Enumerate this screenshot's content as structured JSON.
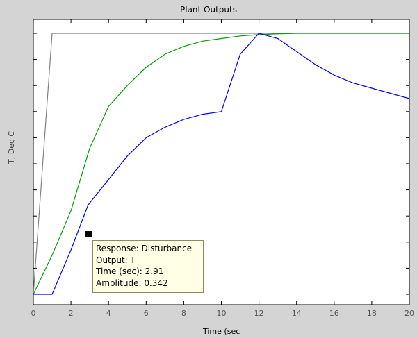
{
  "chart_data": {
    "type": "line",
    "title": "Plant Outputs",
    "xlabel": "Time (sec",
    "ylabel": "T, Deg C",
    "xlim": [
      0,
      20
    ],
    "ylim": [
      0,
      1.05
    ],
    "x_ticks": [
      "0",
      "2",
      "4",
      "6",
      "8",
      "10",
      "12",
      "14",
      "16",
      "18",
      "20"
    ],
    "grid": false,
    "series": [
      {
        "color": "#808080",
        "x": [
          0,
          1,
          20
        ],
        "y": [
          0,
          1,
          1
        ]
      },
      {
        "color": "#00a000",
        "x": [
          0,
          1,
          2,
          3,
          4,
          5,
          6,
          7,
          8,
          9,
          10,
          11,
          12,
          13,
          14,
          16,
          18,
          20
        ],
        "y": [
          0,
          0.15,
          0.32,
          0.56,
          0.72,
          0.8,
          0.87,
          0.92,
          0.95,
          0.97,
          0.98,
          0.99,
          0.995,
          0.998,
          1.0,
          1.0,
          1.0,
          1.0
        ]
      },
      {
        "color": "#0000ff",
        "x": [
          0,
          1,
          2,
          2.91,
          4,
          5,
          6,
          7,
          8,
          9,
          10,
          11,
          12,
          13,
          14,
          15,
          16,
          17,
          18,
          19,
          20
        ],
        "y": [
          0,
          0,
          0.17,
          0.342,
          0.44,
          0.53,
          0.6,
          0.64,
          0.67,
          0.69,
          0.7,
          0.92,
          1.0,
          0.98,
          0.93,
          0.88,
          0.84,
          0.81,
          0.79,
          0.77,
          0.75
        ]
      }
    ],
    "datatip": {
      "line1": "Response: Disturbance",
      "line2": "Output: T",
      "line3": "Time (sec): 2.91",
      "line4": "Amplitude: 0.342",
      "x": 2.91,
      "y": 0.342
    }
  },
  "colors": {
    "background": "#d4d4d4",
    "plot_area": "#ffffff"
  }
}
